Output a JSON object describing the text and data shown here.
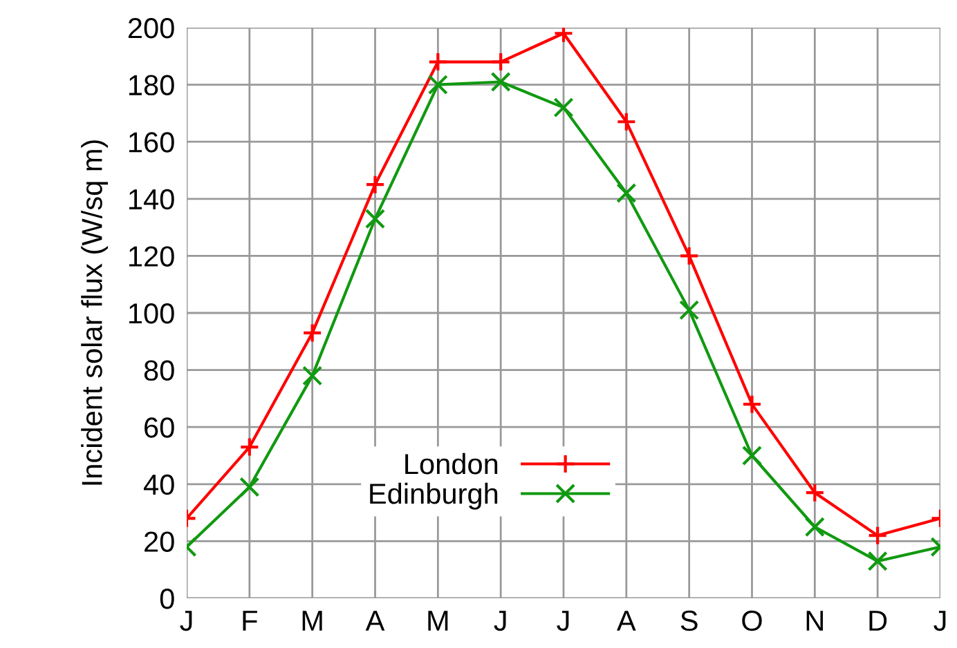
{
  "chart_data": {
    "type": "line",
    "ylabel": "Incident solar flux (W/sq m)",
    "categories": [
      "J",
      "F",
      "M",
      "A",
      "M",
      "J",
      "J",
      "A",
      "S",
      "O",
      "N",
      "D",
      "J"
    ],
    "series": [
      {
        "name": "London",
        "color": "#ff0000",
        "marker": "cross",
        "values": [
          28,
          53,
          93,
          145,
          188,
          188,
          198,
          167,
          120,
          68,
          37,
          22,
          28
        ]
      },
      {
        "name": "Edinburgh",
        "color": "#119911",
        "marker": "x",
        "values": [
          18,
          39,
          78,
          133,
          180,
          181,
          172,
          142,
          101,
          50,
          25,
          13,
          18
        ]
      }
    ],
    "ylim": [
      0,
      200
    ],
    "yticks": [
      0,
      20,
      40,
      60,
      80,
      100,
      120,
      140,
      160,
      180,
      200
    ],
    "grid": true,
    "legend": "bottom",
    "line_style": "solid"
  }
}
